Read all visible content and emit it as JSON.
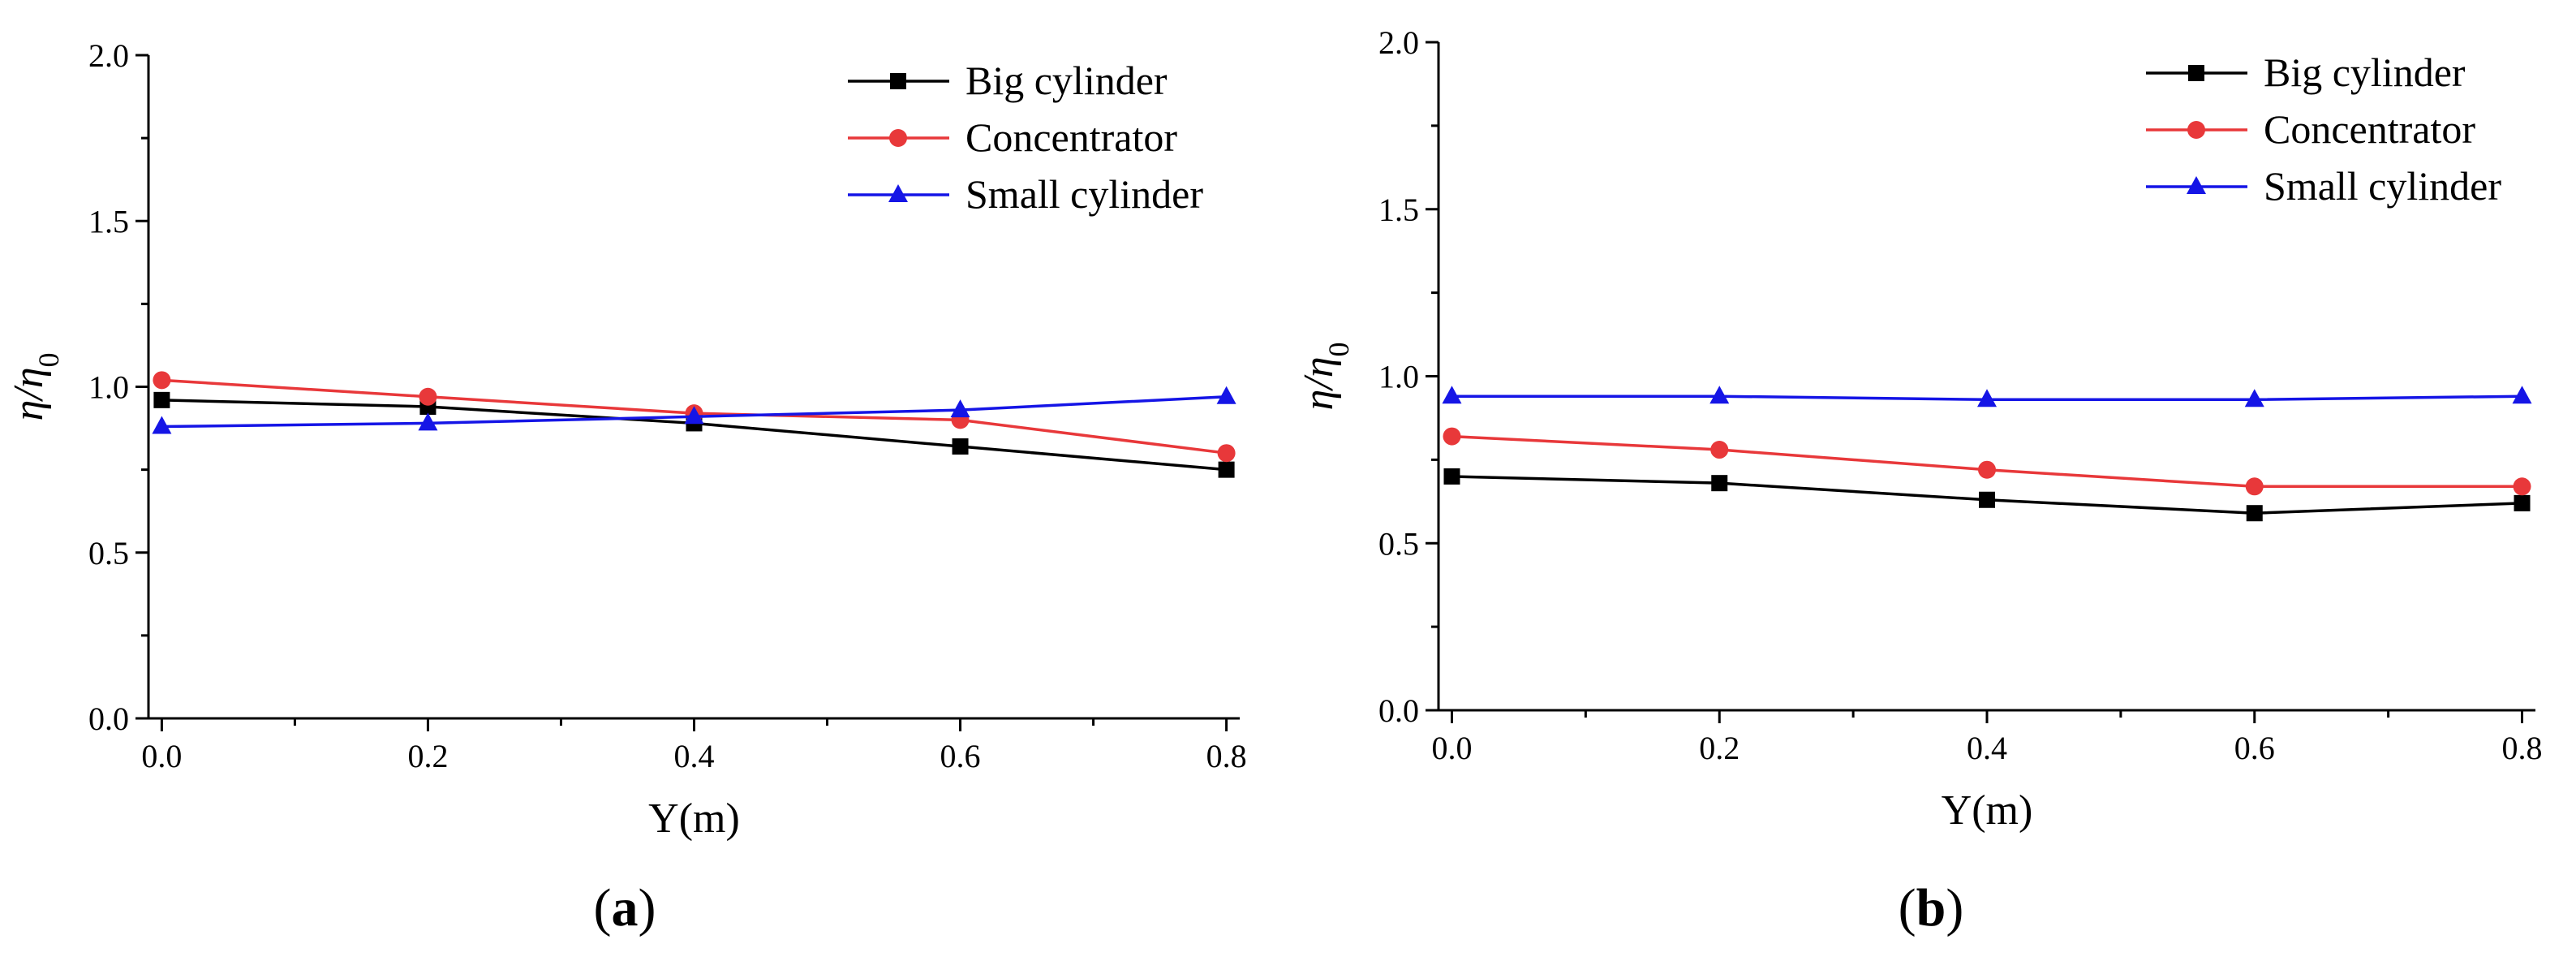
{
  "chart_data": [
    {
      "type": "line",
      "panel_label": "a",
      "xlabel": "Y(m)",
      "ylabel": "η/η0",
      "x": [
        0.0,
        0.2,
        0.4,
        0.6,
        0.8
      ],
      "xlim": [
        -0.01,
        0.81
      ],
      "ylim": [
        0.0,
        2.0
      ],
      "xticks": [
        "0.0",
        "0.2",
        "0.4",
        "0.6",
        "0.8"
      ],
      "yticks": [
        "0.0",
        "0.5",
        "1.0",
        "1.5",
        "2.0"
      ],
      "legend_position": "top-right",
      "grid": false,
      "series": [
        {
          "name": "Big cylinder",
          "color": "#000000",
          "marker": "square",
          "values": [
            0.96,
            0.94,
            0.89,
            0.82,
            0.75
          ]
        },
        {
          "name": "Concentrator",
          "color": "#e8383a",
          "marker": "circle",
          "values": [
            1.02,
            0.97,
            0.92,
            0.9,
            0.8
          ]
        },
        {
          "name": "Small cylinder",
          "color": "#1515e6",
          "marker": "triangle",
          "values": [
            0.88,
            0.89,
            0.91,
            0.93,
            0.97
          ]
        }
      ]
    },
    {
      "type": "line",
      "panel_label": "b",
      "xlabel": "Y(m)",
      "ylabel": "η/η0",
      "x": [
        0.0,
        0.2,
        0.4,
        0.6,
        0.8
      ],
      "xlim": [
        -0.01,
        0.81
      ],
      "ylim": [
        0.0,
        2.0
      ],
      "xticks": [
        "0.0",
        "0.2",
        "0.4",
        "0.6",
        "0.8"
      ],
      "yticks": [
        "0.0",
        "0.5",
        "1.0",
        "1.5",
        "2.0"
      ],
      "legend_position": "top-right",
      "grid": false,
      "series": [
        {
          "name": "Big cylinder",
          "color": "#000000",
          "marker": "square",
          "values": [
            0.7,
            0.68,
            0.63,
            0.59,
            0.62
          ]
        },
        {
          "name": "Concentrator",
          "color": "#e8383a",
          "marker": "circle",
          "values": [
            0.82,
            0.78,
            0.72,
            0.67,
            0.67
          ]
        },
        {
          "name": "Small cylinder",
          "color": "#1515e6",
          "marker": "triangle",
          "values": [
            0.94,
            0.94,
            0.93,
            0.93,
            0.94
          ]
        }
      ]
    }
  ]
}
